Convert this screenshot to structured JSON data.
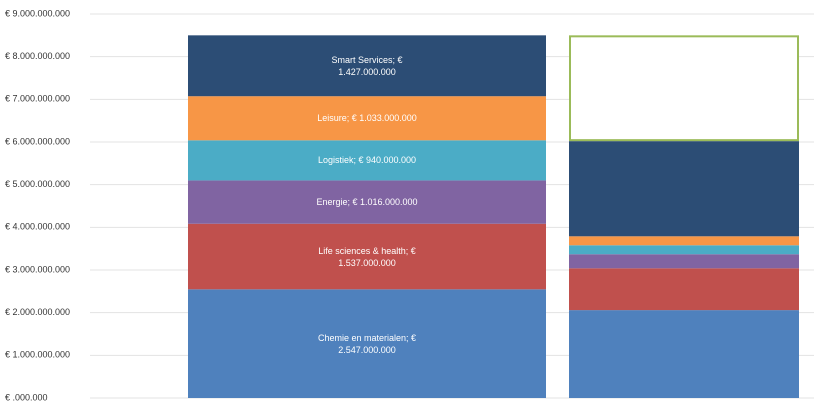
{
  "chart_data": {
    "type": "stacked_bar",
    "categories": [
      null,
      null
    ],
    "ylim": [
      0,
      9000000000
    ],
    "yticks": [
      {
        "value": 0,
        "label": "€ .000.000"
      },
      {
        "value": 1000000000,
        "label": "€ 1.000.000.000"
      },
      {
        "value": 2000000000,
        "label": "€ 2.000.000.000"
      },
      {
        "value": 3000000000,
        "label": "€ 3.000.000.000"
      },
      {
        "value": 4000000000,
        "label": "€ 4.000.000.000"
      },
      {
        "value": 5000000000,
        "label": "€ 5.000.000.000"
      },
      {
        "value": 6000000000,
        "label": "€ 6.000.000.000"
      },
      {
        "value": 7000000000,
        "label": "€ 7.000.000.000"
      },
      {
        "value": 8000000000,
        "label": "€ 8.000.000.000"
      },
      {
        "value": 9000000000,
        "label": "€ 9.000.000.000"
      }
    ],
    "grid": true,
    "series": [
      {
        "name": "Chemie en materialen",
        "color": "#4f81bd",
        "values": [
          2547000000,
          2060000000
        ],
        "value_labels": [
          "Chemie en materialen; € 2.547.000.000",
          null
        ]
      },
      {
        "name": "Life sciences & health",
        "color": "#c0504d",
        "values": [
          1537000000,
          980000000
        ],
        "value_labels": [
          "Life sciences & health; € 1.537.000.000",
          null
        ]
      },
      {
        "name": "Energie",
        "color": "#8064a2",
        "values": [
          1016000000,
          330000000
        ],
        "value_labels": [
          "Energie; € 1.016.000.000",
          null
        ]
      },
      {
        "name": "Logistiek",
        "color": "#4bacc6",
        "values": [
          940000000,
          210000000
        ],
        "value_labels": [
          "Logistiek; € 940.000.000",
          null
        ]
      },
      {
        "name": "Leisure",
        "color": "#f79646",
        "values": [
          1033000000,
          210000000
        ],
        "value_labels": [
          "Leisure; € 1.033.000.000",
          null
        ]
      },
      {
        "name": "Smart Services",
        "color": "#2c4d75",
        "values": [
          1427000000,
          2230000000
        ],
        "value_labels": [
          "Smart Services; € 1.427.000.000",
          null
        ]
      },
      {
        "color": "#ffffff",
        "stroke": "#9bbb59",
        "values": [
          null,
          2480000000
        ]
      }
    ]
  }
}
